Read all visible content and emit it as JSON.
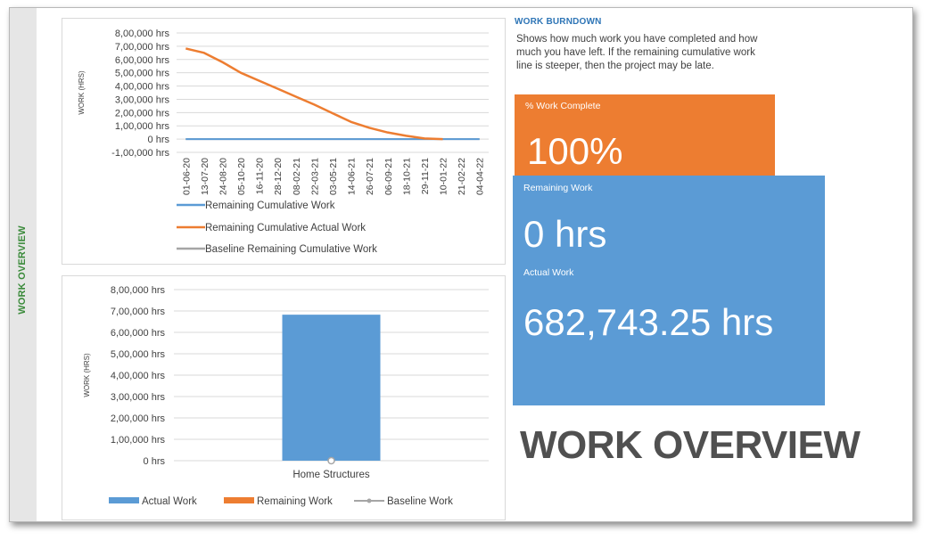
{
  "sidebar": {
    "vertical_title": "WORK OVERVIEW"
  },
  "info": {
    "title": "WORK BURNDOWN",
    "description": "Shows how much work you have completed and how much you have left. If the remaining cumulative work line is steeper, then the project may be late."
  },
  "kpi": {
    "percent_label": "% Work Complete",
    "percent_value": "100%",
    "remaining_label": "Remaining Work",
    "remaining_value": "0 hrs",
    "actual_label": "Actual Work",
    "actual_value": "682,743.25 hrs"
  },
  "report_title": "WORK OVERVIEW",
  "colors": {
    "blue": "#5b9bd5",
    "orange": "#ed7d31",
    "gray": "#a5a5a5",
    "green_title": "#3a8a3a",
    "info_title": "#2e75b6"
  },
  "chart_data": [
    {
      "type": "line",
      "ylabel": "WORK (HRS)",
      "ylim": [
        -100000,
        800000
      ],
      "y_ticks": [
        800000,
        700000,
        600000,
        500000,
        400000,
        300000,
        200000,
        100000,
        0,
        -100000
      ],
      "y_tick_labels": [
        "8,00,000 hrs",
        "7,00,000 hrs",
        "6,00,000 hrs",
        "5,00,000 hrs",
        "4,00,000 hrs",
        "3,00,000 hrs",
        "2,00,000 hrs",
        "1,00,000 hrs",
        "0 hrs",
        "-1,00,000 hrs"
      ],
      "categories": [
        "01-06-20",
        "13-07-20",
        "24-08-20",
        "05-10-20",
        "16-11-20",
        "28-12-20",
        "08-02-21",
        "22-03-21",
        "03-05-21",
        "14-06-21",
        "26-07-21",
        "06-09-21",
        "18-10-21",
        "29-11-21",
        "10-01-22",
        "21-02-22",
        "04-04-22"
      ],
      "grid": true,
      "legend_position": "bottom",
      "series": [
        {
          "name": "Remaining Cumulative Work",
          "color": "#5b9bd5",
          "values": [
            0,
            0,
            0,
            0,
            0,
            0,
            0,
            0,
            0,
            0,
            0,
            0,
            0,
            0,
            0,
            0,
            0
          ]
        },
        {
          "name": "Remaining Cumulative Actual Work",
          "color": "#ed7d31",
          "values": [
            682743,
            650000,
            580000,
            500000,
            440000,
            380000,
            320000,
            260000,
            195000,
            130000,
            85000,
            50000,
            25000,
            5000,
            0,
            null,
            null
          ]
        },
        {
          "name": "Baseline Remaining Cumulative Work",
          "color": "#a5a5a5",
          "values": [
            0,
            0,
            0,
            0,
            0,
            0,
            0,
            0,
            0,
            0,
            0,
            0,
            0,
            0,
            0,
            0,
            0
          ]
        }
      ]
    },
    {
      "type": "bar",
      "ylabel": "WORK (HRS)",
      "ylim": [
        0,
        800000
      ],
      "y_ticks": [
        800000,
        700000,
        600000,
        500000,
        400000,
        300000,
        200000,
        100000,
        0
      ],
      "y_tick_labels": [
        "8,00,000 hrs",
        "7,00,000 hrs",
        "6,00,000 hrs",
        "5,00,000 hrs",
        "4,00,000 hrs",
        "3,00,000 hrs",
        "2,00,000 hrs",
        "1,00,000 hrs",
        "0 hrs"
      ],
      "categories": [
        "Home Structures"
      ],
      "grid": true,
      "legend_position": "bottom",
      "series": [
        {
          "name": "Actual Work",
          "color": "#5b9bd5",
          "values": [
            682743.25
          ]
        },
        {
          "name": "Remaining Work",
          "color": "#ed7d31",
          "values": [
            0
          ]
        },
        {
          "name": "Baseline Work",
          "color": "#a5a5a5",
          "values": [
            0
          ]
        }
      ]
    }
  ]
}
